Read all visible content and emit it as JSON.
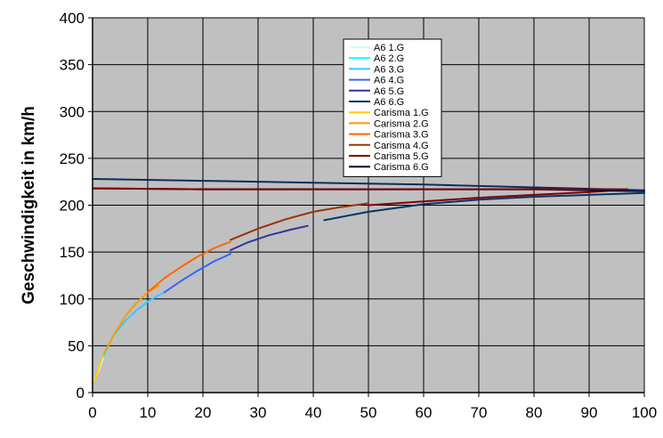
{
  "chart_data": {
    "type": "line",
    "title": "",
    "xlabel": "",
    "ylabel": "Geschwindigkeit in km/h",
    "xlim": [
      0,
      100
    ],
    "ylim": [
      0,
      400
    ],
    "xticks": [
      0,
      10,
      20,
      30,
      40,
      50,
      60,
      70,
      80,
      90,
      100
    ],
    "yticks": [
      0,
      50,
      100,
      150,
      200,
      250,
      300,
      350,
      400
    ],
    "grid": true,
    "plot_background": "#c0c0c0",
    "legend_position": "top-center",
    "series": [
      {
        "name": "A6 1.G",
        "color": "#ccffff",
        "x": [
          0.0,
          0.5,
          1.0,
          1.5,
          2.0
        ],
        "y": [
          10,
          15,
          22,
          30,
          38
        ]
      },
      {
        "name": "A6 2.G",
        "color": "#00ffff",
        "x": [
          2.0,
          2.5,
          3.0,
          3.5,
          4.0,
          4.5
        ],
        "y": [
          38,
          45,
          52,
          57,
          62,
          66
        ]
      },
      {
        "name": "A6 3.G",
        "color": "#33ccff",
        "x": [
          4.5,
          6,
          8,
          10,
          12,
          13
        ],
        "y": [
          66,
          77,
          88,
          97,
          104,
          107
        ]
      },
      {
        "name": "A6 4.G",
        "color": "#3366ff",
        "x": [
          13,
          16,
          19,
          22,
          25
        ],
        "y": [
          107,
          119,
          130,
          140,
          148
        ]
      },
      {
        "name": "A6 5.G",
        "color": "#333399",
        "x": [
          25,
          28,
          32,
          36,
          39
        ],
        "y": [
          152,
          160,
          168,
          174,
          178
        ]
      },
      {
        "name": "A6 6.G",
        "color": "#003366",
        "x": [
          42,
          50,
          60,
          70,
          80,
          90,
          100
        ],
        "y": [
          184,
          193,
          201,
          206,
          209,
          211,
          213
        ]
      },
      {
        "name": "Carisma 1.G",
        "color": "#ffcc00",
        "x": [
          0.0,
          0.5,
          1.0,
          1.5,
          2.0
        ],
        "y": [
          10,
          14,
          24,
          33,
          41
        ]
      },
      {
        "name": "Carisma 2.G",
        "color": "#ff9900",
        "x": [
          2.0,
          4,
          6,
          8,
          10,
          12
        ],
        "y": [
          41,
          63,
          82,
          96,
          107,
          114
        ]
      },
      {
        "name": "Carisma 3.G",
        "color": "#ff6600",
        "x": [
          10,
          13,
          16,
          19,
          22,
          25
        ],
        "y": [
          107,
          122,
          134,
          145,
          154,
          161
        ]
      },
      {
        "name": "Carisma 4.G",
        "color": "#993300",
        "x": [
          25,
          30,
          35,
          40,
          45,
          50
        ],
        "y": [
          163,
          175,
          185,
          193,
          198,
          202
        ]
      },
      {
        "name": "Carisma 5.G",
        "color": "#800000",
        "x": [
          50,
          60,
          70,
          80,
          90,
          95
        ],
        "y": [
          200,
          204,
          208,
          211,
          214,
          216
        ]
      },
      {
        "name": "Carisma 6.G",
        "color": "#000033",
        "x": [
          0,
          20,
          40,
          60,
          80,
          100
        ],
        "y": [
          218,
          217,
          217,
          217,
          217,
          215
        ]
      },
      {
        "name": "",
        "color": "#0e2b5c",
        "x": [
          0,
          20,
          40,
          60,
          80,
          100
        ],
        "y": [
          228,
          226,
          224,
          222,
          219,
          216
        ]
      },
      {
        "name": "",
        "color": "#800000",
        "x": [
          0,
          20,
          40,
          60,
          80,
          97
        ],
        "y": [
          218,
          217,
          217,
          217,
          217,
          217
        ]
      }
    ]
  }
}
